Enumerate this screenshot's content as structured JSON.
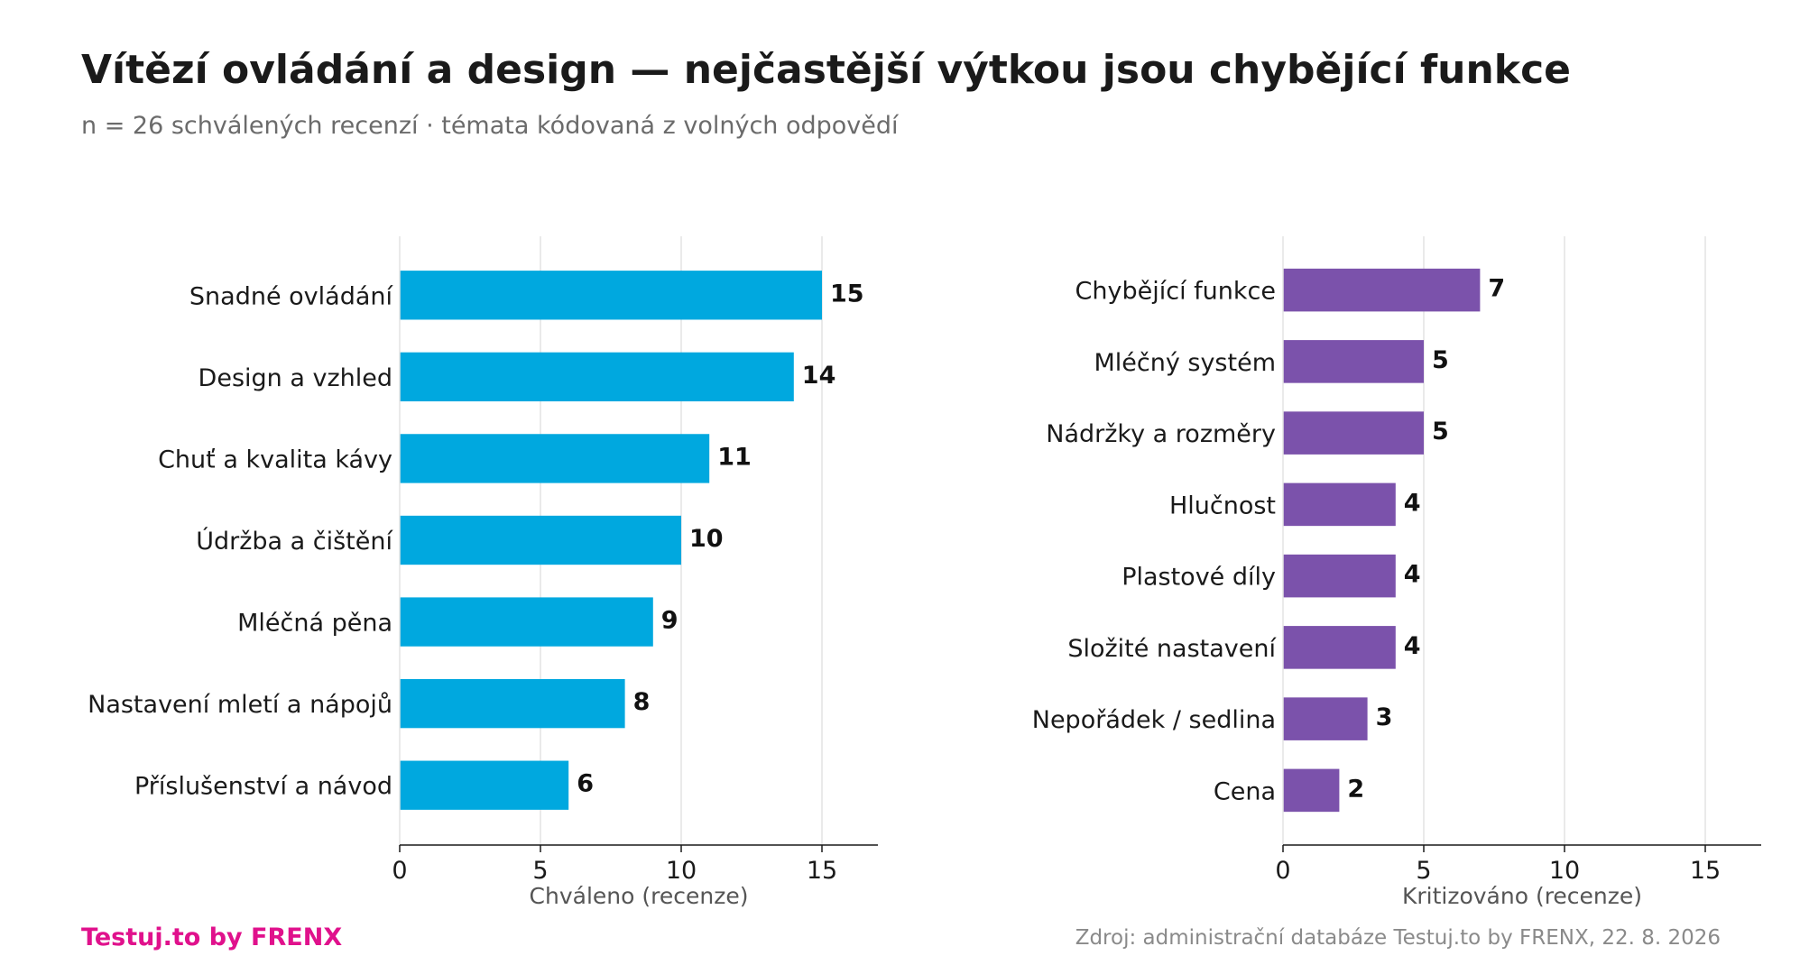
{
  "header": {
    "title": "Vítězí ovládání a design — nejčastější výtkou jsou chybějící funkce",
    "subtitle": "n = 26 schválených recenzí · témata kódovaná z volných odpovědí"
  },
  "footer": {
    "brand": "Testuj.to by FRENX",
    "source": "Zdroj: administrační databáze Testuj.to by FRENX, 22. 8. 2026"
  },
  "colors": {
    "praise": "#00a8df",
    "criticism": "#7b52ab",
    "brand": "#e0118c"
  },
  "chart_data": [
    {
      "type": "bar",
      "orientation": "horizontal",
      "categories": [
        "Snadné ovládání",
        "Design a vzhled",
        "Chuť a kvalita kávy",
        "Údržba a čištění",
        "Mléčná pěna",
        "Nastavení mletí a nápojů",
        "Příslušenství a návod"
      ],
      "values": [
        15,
        14,
        11,
        10,
        9,
        8,
        6
      ],
      "xlabel": "Chváleno (recenze)",
      "xlim": [
        0,
        17
      ],
      "xticks": [
        0,
        5,
        10,
        15
      ],
      "grid": true,
      "color": "#00a8df"
    },
    {
      "type": "bar",
      "orientation": "horizontal",
      "categories": [
        "Chybějící funkce",
        "Mléčný systém",
        "Nádržky a rozměry",
        "Hlučnost",
        "Plastové díly",
        "Složité nastavení",
        "Nepořádek / sedlina",
        "Cena"
      ],
      "values": [
        7,
        5,
        5,
        4,
        4,
        4,
        3,
        2
      ],
      "xlabel": "Kritizováno (recenze)",
      "xlim": [
        0,
        17
      ],
      "xticks": [
        0,
        5,
        10,
        15
      ],
      "grid": true,
      "color": "#7b52ab"
    }
  ]
}
